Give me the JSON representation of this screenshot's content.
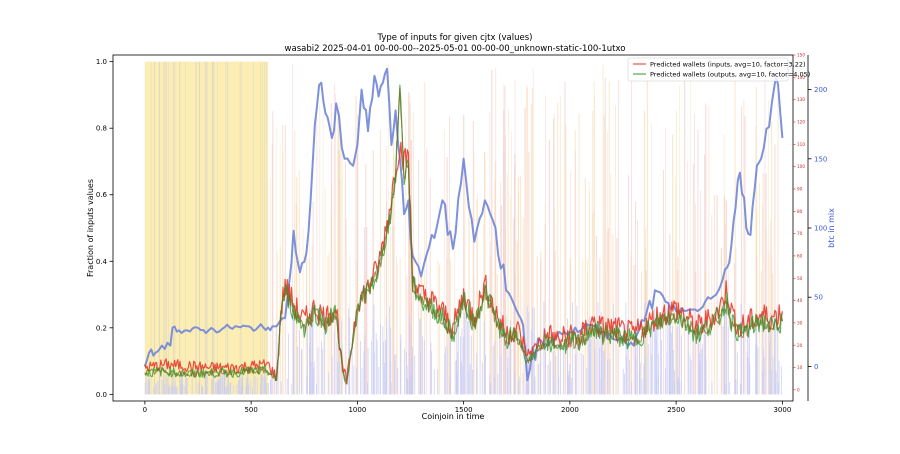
{
  "chart_data": {
    "type": "line",
    "title": "Type of inputs for given cjtx (values)",
    "subtitle": "wasabi2 2025-04-01 00-00-00--2025-05-01 00-00-00_unknown-static-100-1utxo",
    "xlabel": "Coinjoin in time",
    "ylabel": "Fraction of inputs values",
    "y2label": "btc in mix",
    "xlim": [
      -150,
      3050
    ],
    "ylim": [
      -0.02,
      1.02
    ],
    "y2lim": [
      -25,
      225
    ],
    "y3lim": [
      -5,
      150
    ],
    "x_ticks": [
      0,
      500,
      1000,
      1500,
      2000,
      2500,
      3000
    ],
    "y_ticks": [
      0.0,
      0.2,
      0.4,
      0.6,
      0.8,
      1.0
    ],
    "y2_ticks": [
      0,
      50,
      100,
      150,
      200
    ],
    "y3_ticks": [
      0,
      10,
      20,
      30,
      40,
      50,
      60,
      70,
      80,
      90,
      100,
      110,
      120,
      130,
      140,
      150
    ],
    "legend_position": "top-right",
    "colors": {
      "inputs": "#e8301e",
      "outputs": "#2f9a2f",
      "btc": "#6f85d8",
      "yellow_band": "#fbeaa6",
      "pink_lines": "#f2c4c4",
      "orange_lines": "#f7dab0",
      "blue_fill": "#c8ccf7",
      "gray_lines": "#cfcfcf",
      "right_axis_red": "#d62728",
      "right_axis_blue": "#3b5bdb"
    },
    "series": [
      {
        "name": "Predicted wallets (inputs, avg=10, factor=3.22)",
        "x": [
          0,
          100,
          200,
          300,
          400,
          500,
          580,
          620,
          640,
          660,
          700,
          750,
          800,
          850,
          900,
          930,
          950,
          1000,
          1050,
          1100,
          1150,
          1180,
          1200,
          1220,
          1240,
          1260,
          1300,
          1350,
          1400,
          1450,
          1500,
          1550,
          1600,
          1650,
          1700,
          1750,
          1800,
          1850,
          1900,
          1950,
          2000,
          2050,
          2100,
          2150,
          2200,
          2300,
          2400,
          2500,
          2600,
          2700,
          2740,
          2760,
          2800,
          2850,
          2900,
          2950,
          3000
        ],
        "values": [
          0.08,
          0.09,
          0.085,
          0.08,
          0.08,
          0.085,
          0.09,
          0.05,
          0.25,
          0.33,
          0.27,
          0.22,
          0.26,
          0.23,
          0.26,
          0.08,
          0.04,
          0.28,
          0.32,
          0.39,
          0.55,
          0.68,
          0.75,
          0.7,
          0.72,
          0.35,
          0.3,
          0.28,
          0.25,
          0.2,
          0.3,
          0.23,
          0.33,
          0.25,
          0.18,
          0.2,
          0.12,
          0.15,
          0.18,
          0.16,
          0.18,
          0.17,
          0.22,
          0.2,
          0.2,
          0.18,
          0.23,
          0.26,
          0.2,
          0.25,
          0.32,
          0.25,
          0.2,
          0.22,
          0.24,
          0.23,
          0.25
        ]
      },
      {
        "name": "Predicted wallets (outputs, avg=10, factor=4.05)",
        "x": [
          0,
          100,
          200,
          300,
          400,
          500,
          580,
          620,
          640,
          660,
          700,
          750,
          800,
          850,
          900,
          930,
          950,
          1000,
          1050,
          1100,
          1150,
          1180,
          1200,
          1220,
          1240,
          1260,
          1300,
          1350,
          1400,
          1450,
          1500,
          1550,
          1600,
          1650,
          1700,
          1750,
          1800,
          1850,
          1900,
          1950,
          2000,
          2050,
          2100,
          2150,
          2200,
          2300,
          2400,
          2500,
          2600,
          2700,
          2740,
          2760,
          2800,
          2850,
          2900,
          2950,
          3000
        ],
        "values": [
          0.065,
          0.07,
          0.06,
          0.065,
          0.065,
          0.07,
          0.07,
          0.04,
          0.24,
          0.31,
          0.25,
          0.2,
          0.25,
          0.21,
          0.25,
          0.07,
          0.03,
          0.26,
          0.31,
          0.37,
          0.52,
          0.66,
          0.93,
          0.65,
          0.7,
          0.33,
          0.28,
          0.26,
          0.23,
          0.18,
          0.28,
          0.21,
          0.31,
          0.23,
          0.16,
          0.18,
          0.1,
          0.13,
          0.16,
          0.14,
          0.16,
          0.15,
          0.2,
          0.18,
          0.18,
          0.16,
          0.21,
          0.24,
          0.18,
          0.23,
          0.28,
          0.22,
          0.18,
          0.2,
          0.22,
          0.2,
          0.22
        ]
      },
      {
        "name": "btc in mix",
        "axis": "right",
        "x": [
          0,
          20,
          50,
          80,
          120,
          130,
          160,
          200,
          300,
          400,
          500,
          580,
          600,
          620,
          660,
          690,
          700,
          730,
          760,
          780,
          800,
          830,
          860,
          880,
          900,
          940,
          980,
          1000,
          1020,
          1050,
          1080,
          1100,
          1120,
          1140,
          1160,
          1180,
          1200,
          1220,
          1240,
          1260,
          1300,
          1350,
          1400,
          1450,
          1500,
          1550,
          1600,
          1650,
          1700,
          1750,
          1780,
          1800,
          1850,
          1900,
          1950,
          2000,
          2100,
          2200,
          2300,
          2400,
          2500,
          2600,
          2650,
          2700,
          2730,
          2750,
          2780,
          2800,
          2830,
          2850,
          2880,
          2900,
          2950,
          2970,
          3000
        ],
        "values": [
          0,
          10,
          10,
          15,
          15,
          28,
          26,
          26,
          26,
          28,
          28,
          28,
          29,
          29,
          35,
          75,
          98,
          68,
          82,
          120,
          175,
          205,
          180,
          165,
          190,
          150,
          145,
          160,
          200,
          170,
          210,
          195,
          205,
          215,
          160,
          185,
          150,
          110,
          120,
          80,
          65,
          95,
          120,
          85,
          150,
          90,
          120,
          100,
          55,
          40,
          30,
          -10,
          20,
          15,
          25,
          25,
          30,
          20,
          15,
          55,
          40,
          40,
          50,
          55,
          70,
          75,
          115,
          140,
          100,
          95,
          145,
          150,
          190,
          210,
          165
        ]
      }
    ],
    "legend": [
      "Predicted wallets (inputs, avg=10, factor=3.22)",
      "Predicted wallets (outputs, avg=10, factor=4.05)"
    ]
  }
}
